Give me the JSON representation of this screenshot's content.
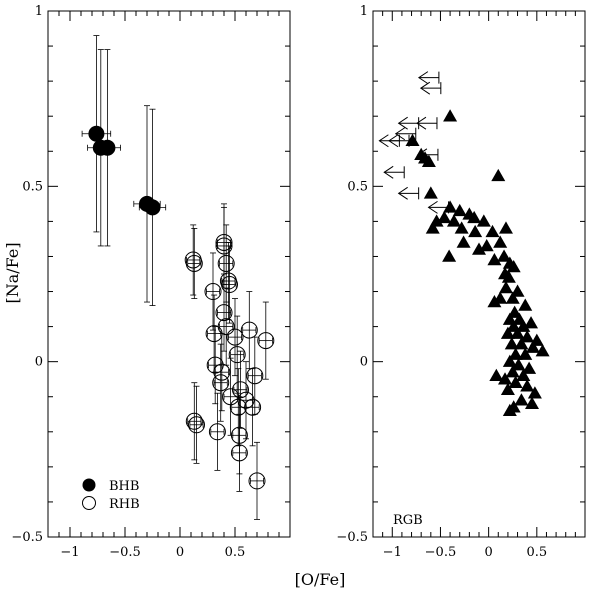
{
  "chart_data": {
    "type": "scatter",
    "xlabel": "[O/Fe]",
    "ylabel": "[Na/Fe]",
    "panels": [
      {
        "name": "left",
        "xlim": [
          -1.2,
          1.0
        ],
        "ylim": [
          -0.5,
          1.0
        ],
        "xticks": [
          -1,
          -0.5,
          0,
          0.5
        ],
        "xtick_labels": [
          "−1",
          "−0.5",
          "0",
          "0.5"
        ],
        "yticks": [
          -0.5,
          0,
          0.5,
          1
        ],
        "ytick_labels": [
          "−0.5",
          "0",
          "0.5",
          "1"
        ],
        "legend": [
          {
            "label": "BHB",
            "marker": "filled-circle"
          },
          {
            "label": "RHB",
            "marker": "open-circle"
          }
        ],
        "series": [
          {
            "name": "BHB",
            "marker": "filled-circle",
            "points": [
              {
                "x": -0.76,
                "y": 0.65,
                "xerr": 0.13,
                "yerr": 0.28
              },
              {
                "x": -0.72,
                "y": 0.61,
                "xerr": 0.12,
                "yerr": 0.28
              },
              {
                "x": -0.66,
                "y": 0.61,
                "xerr": 0.12,
                "yerr": 0.28
              },
              {
                "x": -0.3,
                "y": 0.45,
                "xerr": 0.12,
                "yerr": 0.28
              },
              {
                "x": -0.25,
                "y": 0.44,
                "xerr": 0.12,
                "yerr": 0.28
              }
            ]
          },
          {
            "name": "RHB",
            "marker": "open-circle",
            "points": [
              {
                "x": 0.12,
                "y": 0.29,
                "xerr": 0.06,
                "yerr": 0.1
              },
              {
                "x": 0.13,
                "y": 0.28,
                "xerr": 0.06,
                "yerr": 0.1
              },
              {
                "x": 0.4,
                "y": 0.34,
                "xerr": 0.06,
                "yerr": 0.11
              },
              {
                "x": 0.4,
                "y": 0.33,
                "xerr": 0.06,
                "yerr": 0.11
              },
              {
                "x": 0.42,
                "y": 0.28,
                "xerr": 0.06,
                "yerr": 0.11
              },
              {
                "x": 0.44,
                "y": 0.23,
                "xerr": 0.06,
                "yerr": 0.11
              },
              {
                "x": 0.45,
                "y": 0.22,
                "xerr": 0.06,
                "yerr": 0.11
              },
              {
                "x": 0.3,
                "y": 0.2,
                "xerr": 0.06,
                "yerr": 0.11
              },
              {
                "x": 0.4,
                "y": 0.14,
                "xerr": 0.06,
                "yerr": 0.11
              },
              {
                "x": 0.42,
                "y": 0.1,
                "xerr": 0.06,
                "yerr": 0.11
              },
              {
                "x": 0.31,
                "y": 0.08,
                "xerr": 0.06,
                "yerr": 0.11
              },
              {
                "x": 0.5,
                "y": 0.07,
                "xerr": 0.06,
                "yerr": 0.11
              },
              {
                "x": 0.63,
                "y": 0.09,
                "xerr": 0.06,
                "yerr": 0.11
              },
              {
                "x": 0.78,
                "y": 0.06,
                "xerr": 0.06,
                "yerr": 0.11
              },
              {
                "x": 0.52,
                "y": 0.02,
                "xerr": 0.06,
                "yerr": 0.11
              },
              {
                "x": 0.32,
                "y": -0.01,
                "xerr": 0.06,
                "yerr": 0.11
              },
              {
                "x": 0.38,
                "y": -0.03,
                "xerr": 0.06,
                "yerr": 0.11
              },
              {
                "x": 0.37,
                "y": -0.06,
                "xerr": 0.06,
                "yerr": 0.11
              },
              {
                "x": 0.68,
                "y": -0.04,
                "xerr": 0.06,
                "yerr": 0.11
              },
              {
                "x": 0.55,
                "y": -0.08,
                "xerr": 0.06,
                "yerr": 0.11
              },
              {
                "x": 0.46,
                "y": -0.1,
                "xerr": 0.06,
                "yerr": 0.11
              },
              {
                "x": 0.6,
                "y": -0.11,
                "xerr": 0.06,
                "yerr": 0.11
              },
              {
                "x": 0.66,
                "y": -0.13,
                "xerr": 0.06,
                "yerr": 0.11
              },
              {
                "x": 0.53,
                "y": -0.13,
                "xerr": 0.06,
                "yerr": 0.11
              },
              {
                "x": 0.13,
                "y": -0.17,
                "xerr": 0.06,
                "yerr": 0.11
              },
              {
                "x": 0.15,
                "y": -0.18,
                "xerr": 0.06,
                "yerr": 0.11
              },
              {
                "x": 0.34,
                "y": -0.2,
                "xerr": 0.06,
                "yerr": 0.11
              },
              {
                "x": 0.54,
                "y": -0.21,
                "xerr": 0.06,
                "yerr": 0.11
              },
              {
                "x": 0.54,
                "y": -0.26,
                "xerr": 0.06,
                "yerr": 0.11
              },
              {
                "x": 0.7,
                "y": -0.34,
                "xerr": 0.06,
                "yerr": 0.11
              }
            ]
          }
        ]
      },
      {
        "name": "right",
        "label": "RGB",
        "xlim": [
          -1.2,
          1.0
        ],
        "ylim": [
          -0.5,
          1.0
        ],
        "xticks": [
          -1,
          -0.5,
          0,
          0.5
        ],
        "xtick_labels": [
          "−1",
          "−0.5",
          "0",
          "0.5"
        ],
        "yticks": [
          -0.5,
          0,
          0.5,
          1
        ],
        "ytick_labels": [
          "−0.5",
          "0",
          "0.5",
          "1"
        ],
        "series": [
          {
            "name": "RGB",
            "marker": "filled-triangle",
            "points": [
              {
                "x": -0.4,
                "y": 0.7
              },
              {
                "x": -0.79,
                "y": 0.63
              },
              {
                "x": -0.7,
                "y": 0.59
              },
              {
                "x": -0.66,
                "y": 0.58
              },
              {
                "x": -0.62,
                "y": 0.57
              },
              {
                "x": 0.1,
                "y": 0.53
              },
              {
                "x": -0.6,
                "y": 0.48
              },
              {
                "x": -0.4,
                "y": 0.44
              },
              {
                "x": -0.3,
                "y": 0.43
              },
              {
                "x": -0.2,
                "y": 0.42
              },
              {
                "x": -0.15,
                "y": 0.41
              },
              {
                "x": -0.05,
                "y": 0.4
              },
              {
                "x": -0.36,
                "y": 0.4
              },
              {
                "x": -0.46,
                "y": 0.41
              },
              {
                "x": -0.58,
                "y": 0.38
              },
              {
                "x": -0.54,
                "y": 0.4
              },
              {
                "x": -0.28,
                "y": 0.38
              },
              {
                "x": -0.14,
                "y": 0.37
              },
              {
                "x": 0.04,
                "y": 0.37
              },
              {
                "x": 0.18,
                "y": 0.38
              },
              {
                "x": -0.26,
                "y": 0.34
              },
              {
                "x": -0.02,
                "y": 0.33
              },
              {
                "x": 0.12,
                "y": 0.34
              },
              {
                "x": -0.1,
                "y": 0.32
              },
              {
                "x": 0.16,
                "y": 0.3
              },
              {
                "x": 0.06,
                "y": 0.29
              },
              {
                "x": -0.41,
                "y": 0.3
              },
              {
                "x": 0.22,
                "y": 0.28
              },
              {
                "x": 0.17,
                "y": 0.25
              },
              {
                "x": 0.21,
                "y": 0.24
              },
              {
                "x": 0.26,
                "y": 0.27
              },
              {
                "x": 0.18,
                "y": 0.21
              },
              {
                "x": 0.12,
                "y": 0.18
              },
              {
                "x": 0.25,
                "y": 0.18
              },
              {
                "x": 0.3,
                "y": 0.2
              },
              {
                "x": 0.06,
                "y": 0.17
              },
              {
                "x": 0.38,
                "y": 0.16
              },
              {
                "x": 0.27,
                "y": 0.14
              },
              {
                "x": 0.22,
                "y": 0.12
              },
              {
                "x": 0.32,
                "y": 0.12
              },
              {
                "x": 0.44,
                "y": 0.11
              },
              {
                "x": 0.26,
                "y": 0.1
              },
              {
                "x": 0.36,
                "y": 0.1
              },
              {
                "x": 0.2,
                "y": 0.08
              },
              {
                "x": 0.3,
                "y": 0.08
              },
              {
                "x": 0.4,
                "y": 0.07
              },
              {
                "x": 0.5,
                "y": 0.06
              },
              {
                "x": 0.24,
                "y": 0.05
              },
              {
                "x": 0.34,
                "y": 0.05
              },
              {
                "x": 0.46,
                "y": 0.04
              },
              {
                "x": 0.56,
                "y": 0.03
              },
              {
                "x": 0.28,
                "y": 0.02
              },
              {
                "x": 0.38,
                "y": 0.02
              },
              {
                "x": 0.22,
                "y": 0.0
              },
              {
                "x": 0.31,
                "y": -0.01
              },
              {
                "x": 0.42,
                "y": -0.02
              },
              {
                "x": 0.25,
                "y": -0.03
              },
              {
                "x": 0.36,
                "y": -0.04
              },
              {
                "x": 0.08,
                "y": -0.04
              },
              {
                "x": 0.17,
                "y": -0.05
              },
              {
                "x": 0.28,
                "y": -0.06
              },
              {
                "x": 0.4,
                "y": -0.07
              },
              {
                "x": 0.48,
                "y": -0.09
              },
              {
                "x": 0.2,
                "y": -0.08
              },
              {
                "x": 0.34,
                "y": -0.11
              },
              {
                "x": 0.45,
                "y": -0.12
              },
              {
                "x": 0.26,
                "y": -0.13
              },
              {
                "x": 0.22,
                "y": -0.14
              }
            ]
          },
          {
            "name": "RGB upper limits",
            "marker": "left-arrow",
            "points": [
              {
                "x": -0.62,
                "y": 0.81
              },
              {
                "x": -0.6,
                "y": 0.78
              },
              {
                "x": -0.64,
                "y": 0.68
              },
              {
                "x": -0.83,
                "y": 0.68
              },
              {
                "x": -0.86,
                "y": 0.65
              },
              {
                "x": -1.03,
                "y": 0.63
              },
              {
                "x": -0.93,
                "y": 0.63
              },
              {
                "x": -0.63,
                "y": 0.59
              },
              {
                "x": -0.98,
                "y": 0.54
              },
              {
                "x": -0.83,
                "y": 0.48
              },
              {
                "x": -0.52,
                "y": 0.44
              }
            ]
          }
        ]
      }
    ]
  }
}
